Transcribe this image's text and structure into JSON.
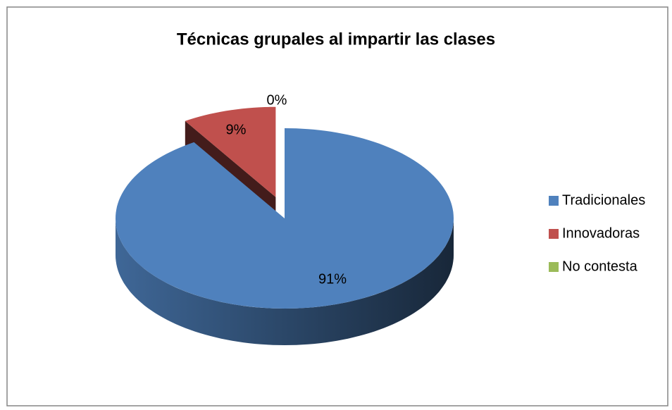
{
  "chart_data": {
    "type": "pie",
    "title": "Técnicas grupales al impartir las clases",
    "categories": [
      "Tradicionales",
      "Innovadoras",
      "No contesta"
    ],
    "values": [
      91,
      9,
      0
    ],
    "value_labels": [
      "91%",
      "9%",
      "0%"
    ],
    "colors": [
      "#4f81bd",
      "#c0504d",
      "#9bbb59"
    ],
    "legend": "right"
  }
}
